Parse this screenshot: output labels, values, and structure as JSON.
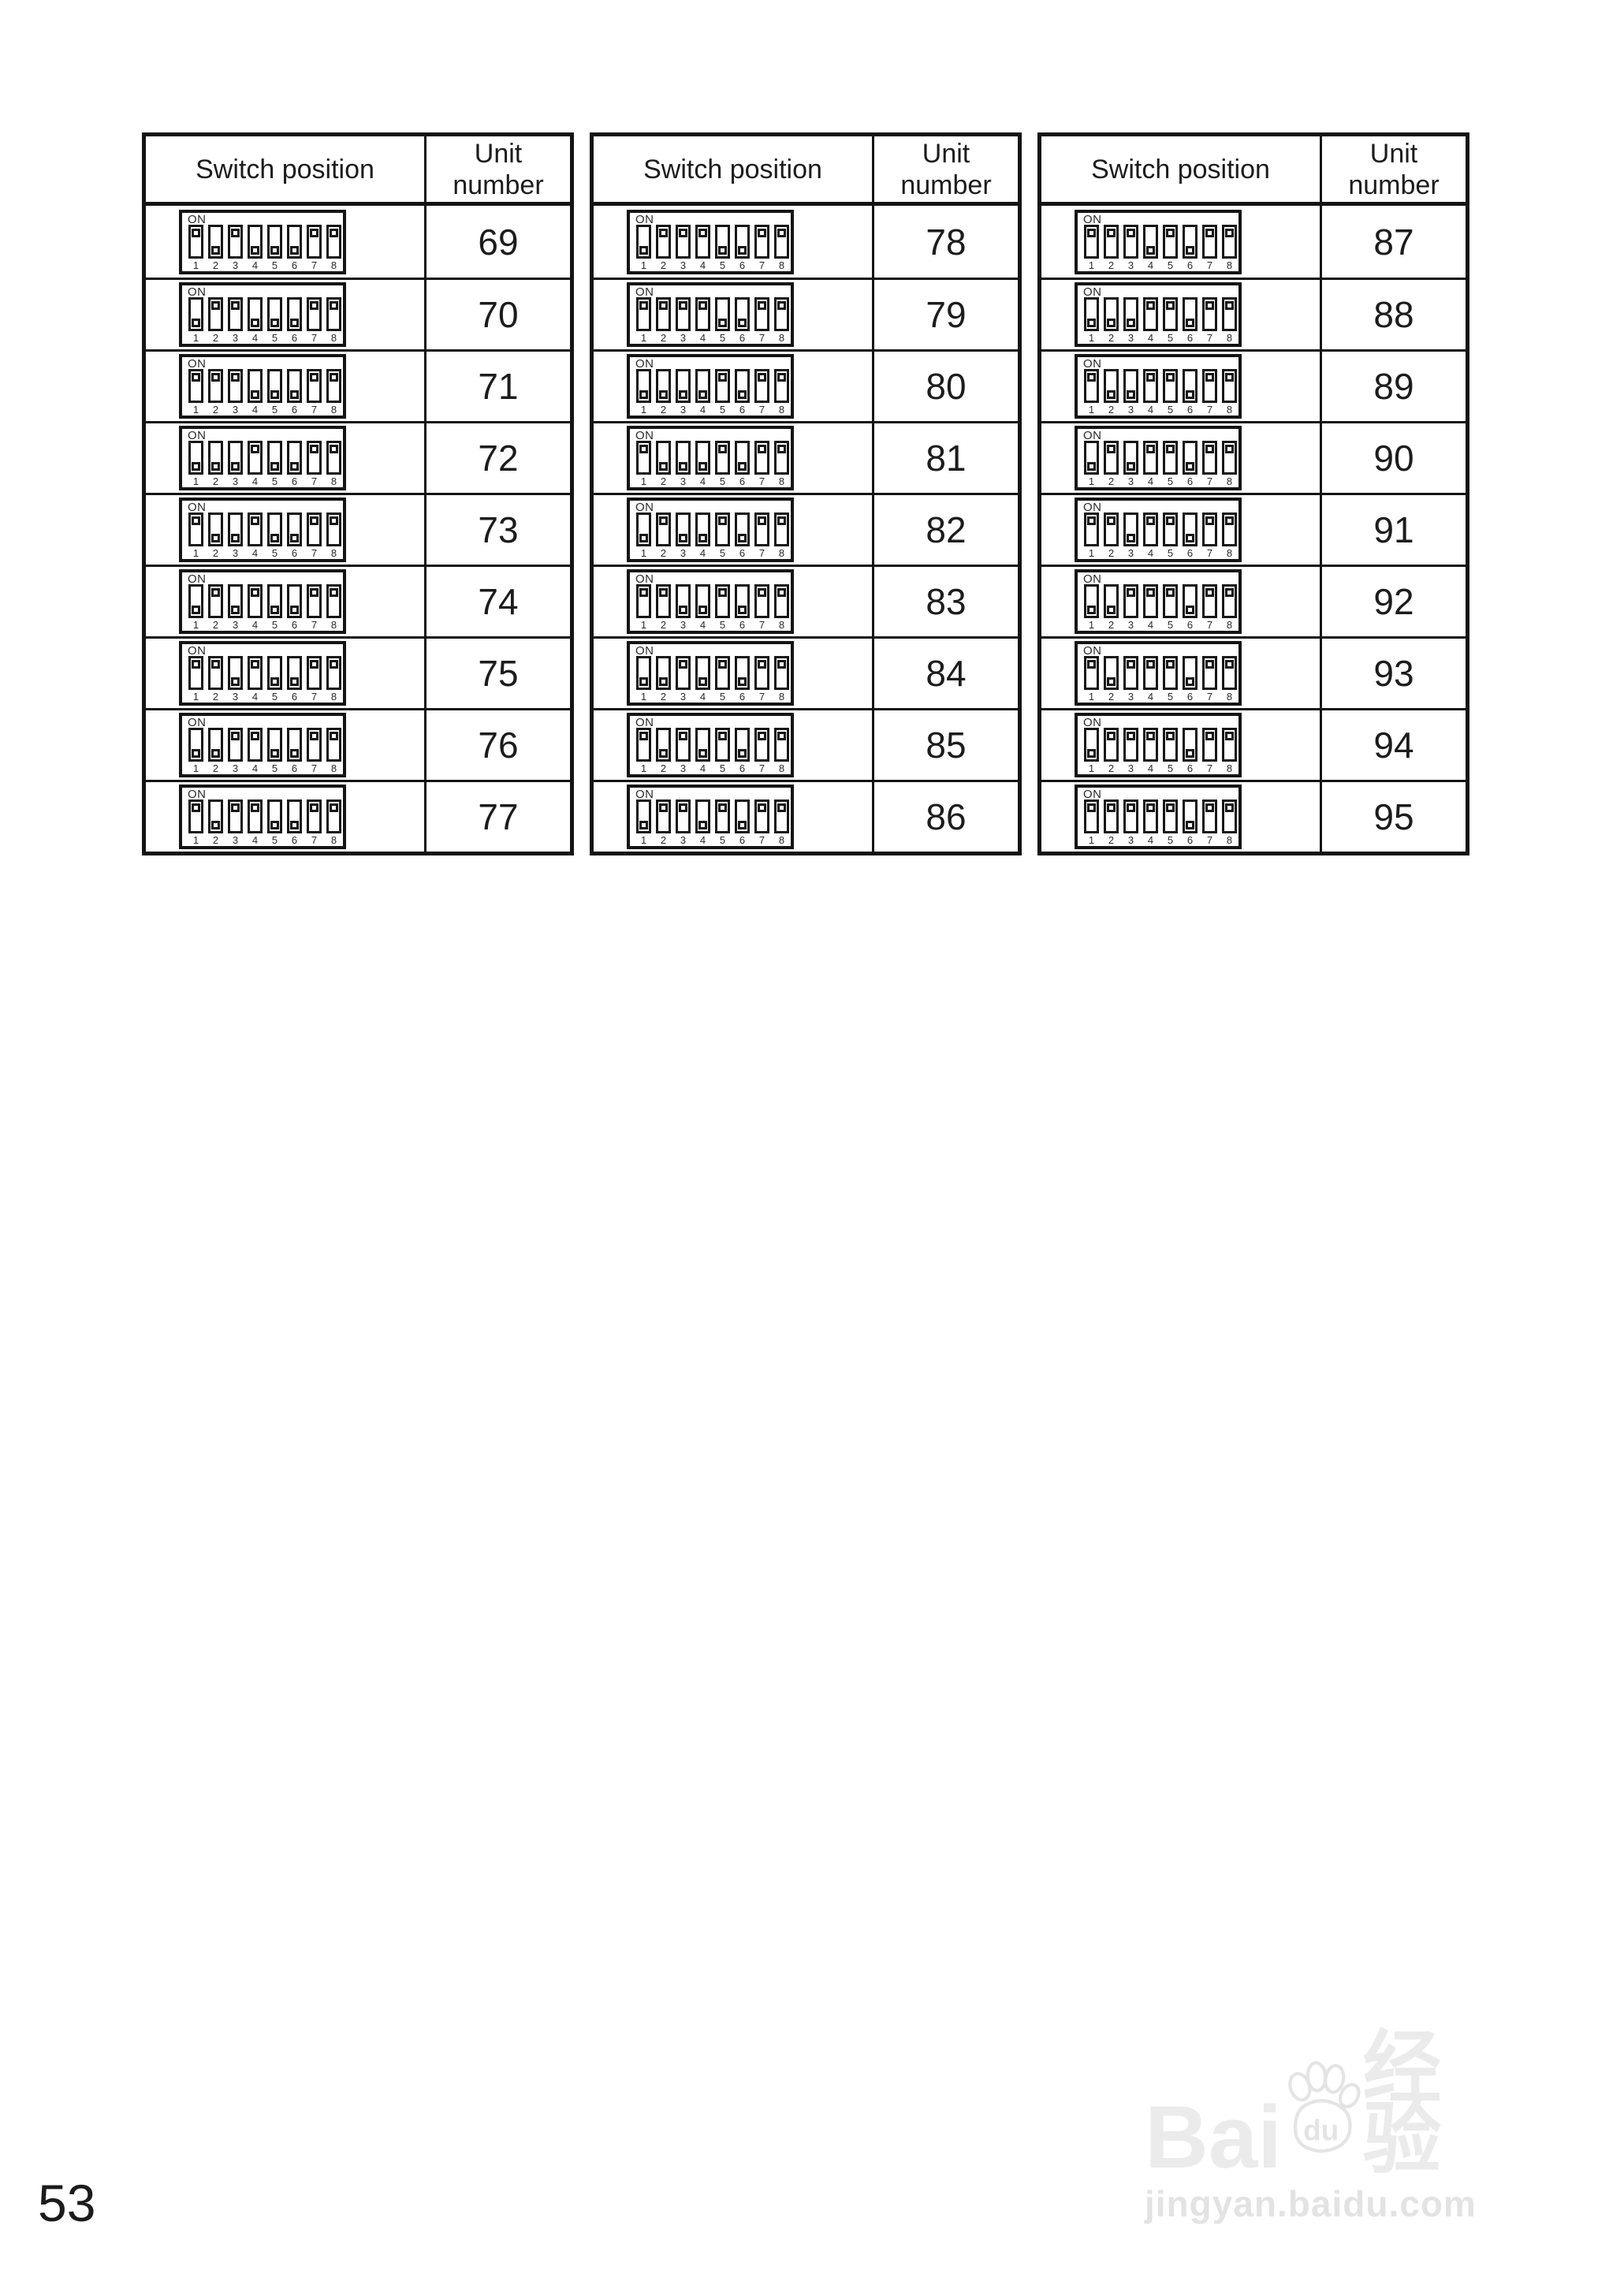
{
  "page": {
    "number": "53"
  },
  "table": {
    "col_switch": "Switch position",
    "col_unit": "Unit\nnumber"
  },
  "dip": {
    "on_label": "ON",
    "pins": [
      "1",
      "2",
      "3",
      "4",
      "5",
      "6",
      "7",
      "8"
    ]
  },
  "groups": [
    {
      "rows": [
        {
          "unit": "69",
          "sw": [
            1,
            0,
            1,
            0,
            0,
            0,
            1,
            1
          ]
        },
        {
          "unit": "70",
          "sw": [
            0,
            1,
            1,
            0,
            0,
            0,
            1,
            1
          ]
        },
        {
          "unit": "71",
          "sw": [
            1,
            1,
            1,
            0,
            0,
            0,
            1,
            1
          ]
        },
        {
          "unit": "72",
          "sw": [
            0,
            0,
            0,
            1,
            0,
            0,
            1,
            1
          ]
        },
        {
          "unit": "73",
          "sw": [
            1,
            0,
            0,
            1,
            0,
            0,
            1,
            1
          ]
        },
        {
          "unit": "74",
          "sw": [
            0,
            1,
            0,
            1,
            0,
            0,
            1,
            1
          ]
        },
        {
          "unit": "75",
          "sw": [
            1,
            1,
            0,
            1,
            0,
            0,
            1,
            1
          ]
        },
        {
          "unit": "76",
          "sw": [
            0,
            0,
            1,
            1,
            0,
            0,
            1,
            1
          ]
        },
        {
          "unit": "77",
          "sw": [
            1,
            0,
            1,
            1,
            0,
            0,
            1,
            1
          ]
        }
      ]
    },
    {
      "rows": [
        {
          "unit": "78",
          "sw": [
            0,
            1,
            1,
            1,
            0,
            0,
            1,
            1
          ]
        },
        {
          "unit": "79",
          "sw": [
            1,
            1,
            1,
            1,
            0,
            0,
            1,
            1
          ]
        },
        {
          "unit": "80",
          "sw": [
            0,
            0,
            0,
            0,
            1,
            0,
            1,
            1
          ]
        },
        {
          "unit": "81",
          "sw": [
            1,
            0,
            0,
            0,
            1,
            0,
            1,
            1
          ]
        },
        {
          "unit": "82",
          "sw": [
            0,
            1,
            0,
            0,
            1,
            0,
            1,
            1
          ]
        },
        {
          "unit": "83",
          "sw": [
            1,
            1,
            0,
            0,
            1,
            0,
            1,
            1
          ]
        },
        {
          "unit": "84",
          "sw": [
            0,
            0,
            1,
            0,
            1,
            0,
            1,
            1
          ]
        },
        {
          "unit": "85",
          "sw": [
            1,
            0,
            1,
            0,
            1,
            0,
            1,
            1
          ]
        },
        {
          "unit": "86",
          "sw": [
            0,
            1,
            1,
            0,
            1,
            0,
            1,
            1
          ]
        }
      ]
    },
    {
      "rows": [
        {
          "unit": "87",
          "sw": [
            1,
            1,
            1,
            0,
            1,
            0,
            1,
            1
          ]
        },
        {
          "unit": "88",
          "sw": [
            0,
            0,
            0,
            1,
            1,
            0,
            1,
            1
          ]
        },
        {
          "unit": "89",
          "sw": [
            1,
            0,
            0,
            1,
            1,
            0,
            1,
            1
          ]
        },
        {
          "unit": "90",
          "sw": [
            0,
            1,
            0,
            1,
            1,
            0,
            1,
            1
          ]
        },
        {
          "unit": "91",
          "sw": [
            1,
            1,
            0,
            1,
            1,
            0,
            1,
            1
          ]
        },
        {
          "unit": "92",
          "sw": [
            0,
            0,
            1,
            1,
            1,
            0,
            1,
            1
          ]
        },
        {
          "unit": "93",
          "sw": [
            1,
            0,
            1,
            1,
            1,
            0,
            1,
            1
          ]
        },
        {
          "unit": "94",
          "sw": [
            0,
            1,
            1,
            1,
            1,
            0,
            1,
            1
          ]
        },
        {
          "unit": "95",
          "sw": [
            1,
            1,
            1,
            1,
            1,
            0,
            1,
            1
          ]
        }
      ]
    }
  ],
  "watermark": {
    "brand_bai": "Bai",
    "brand_du": "du",
    "brand_cn": "经验",
    "url": "jingyan.baidu.com"
  }
}
